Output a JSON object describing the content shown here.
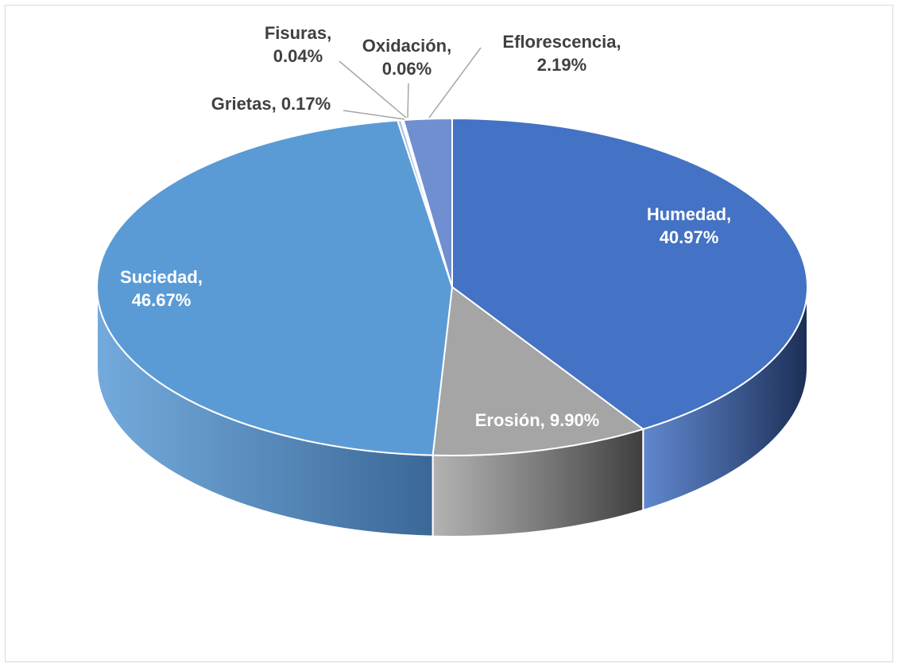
{
  "chart_data": {
    "type": "pie",
    "style": "3d",
    "categories": [
      "Humedad",
      "Erosión",
      "Suciedad",
      "Grietas",
      "Fisuras",
      "Oxidación",
      "Eflorescencia"
    ],
    "values": [
      40.97,
      9.9,
      46.67,
      0.17,
      0.04,
      0.06,
      2.19
    ],
    "unit": "%",
    "labels": [
      {
        "lines": [
          "Humedad,",
          "40.97%"
        ]
      },
      {
        "lines": [
          "Erosión, 9.90%"
        ]
      },
      {
        "lines": [
          "Suciedad,",
          "46.67%"
        ]
      },
      {
        "lines": [
          "Grietas, 0.17%"
        ]
      },
      {
        "lines": [
          "Fisuras,",
          "0.04%"
        ]
      },
      {
        "lines": [
          "Oxidación,",
          "0.06%"
        ]
      },
      {
        "lines": [
          "Eflorescencia,",
          "2.19%"
        ]
      }
    ],
    "colors": {
      "top": [
        "#4472c4",
        "#a5a5a5",
        "#5b9bd5",
        "#a9c4e8",
        "#c9d9ef",
        "#93b3e0",
        "#6f8fd1"
      ],
      "side": [
        "#1c2e55",
        "#3e3e3e",
        "#3a6796",
        "#6e8fb8",
        "#8aa3c4",
        "#5f7fae",
        "#3d5a9a"
      ],
      "edge": "#ffffff",
      "label_inside": "#ffffff",
      "label_outside": "#404040",
      "leader": "#a6a6a6"
    },
    "legend": "none"
  }
}
